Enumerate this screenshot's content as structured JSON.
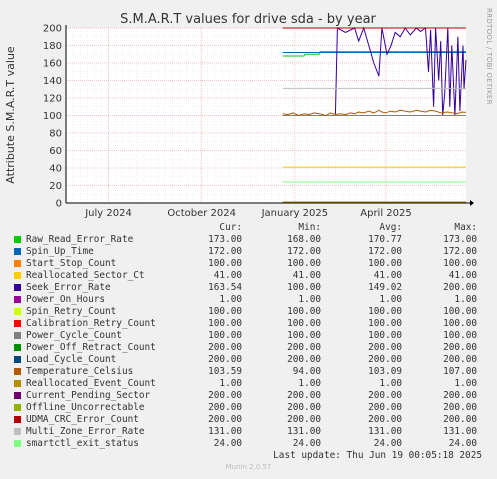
{
  "chart_data": {
    "type": "line",
    "title": "S.M.A.R.T values for drive sda - by year",
    "ylabel": "Attribute S.M.A.R.T value",
    "side_label": "RRDTOOL / TOBI OETIKER",
    "ylim": [
      0,
      200
    ],
    "y_ticks": [
      0,
      20,
      40,
      60,
      80,
      100,
      120,
      140,
      160,
      180,
      200
    ],
    "x_range": [
      "2024-05-20",
      "2025-06-19"
    ],
    "x_ticks": [
      {
        "date": "2024-07-01",
        "label": "July 2024"
      },
      {
        "date": "2024-10-01",
        "label": "October 2024"
      },
      {
        "date": "2025-01-01",
        "label": "January 2025"
      },
      {
        "date": "2025-04-01",
        "label": "April 2025"
      }
    ],
    "grid": true,
    "columns": {
      "cur": "Cur:",
      "min": "Min:",
      "avg": "Avg:",
      "max": "Max:"
    },
    "series": [
      {
        "name": "Raw_Read_Error_Rate",
        "color": "#00cc00",
        "cur": "173.00",
        "min": "168.00",
        "avg": "170.77",
        "max": "173.00",
        "points": [
          [
            "2024-12-20",
            168
          ],
          [
            "2025-01-10",
            168
          ],
          [
            "2025-01-11",
            170
          ],
          [
            "2025-01-25",
            170
          ],
          [
            "2025-01-26",
            173
          ],
          [
            "2025-06-19",
            173
          ]
        ]
      },
      {
        "name": "Spin_Up_Time",
        "color": "#0066b3",
        "cur": "172.00",
        "min": "172.00",
        "avg": "172.00",
        "max": "172.00",
        "points": [
          [
            "2024-12-20",
            172
          ],
          [
            "2025-06-19",
            172
          ]
        ]
      },
      {
        "name": "Start_Stop_Count",
        "color": "#ff8000",
        "cur": "100.00",
        "min": "100.00",
        "avg": "100.00",
        "max": "100.00",
        "points": [
          [
            "2024-12-20",
            100
          ],
          [
            "2025-06-19",
            100
          ]
        ]
      },
      {
        "name": "Reallocated_Sector_Ct",
        "color": "#ffcc00",
        "cur": "41.00",
        "min": "41.00",
        "avg": "41.00",
        "max": "41.00",
        "points": [
          [
            "2024-12-20",
            41
          ],
          [
            "2025-06-19",
            41
          ]
        ]
      },
      {
        "name": "Seek_Error_Rate",
        "color": "#330099",
        "cur": "163.54",
        "min": "100.00",
        "avg": "149.02",
        "max": "200.00",
        "points": [
          [
            "2024-12-20",
            100
          ],
          [
            "2025-02-10",
            100
          ],
          [
            "2025-02-12",
            200
          ],
          [
            "2025-02-20",
            195
          ],
          [
            "2025-03-01",
            200
          ],
          [
            "2025-03-05",
            185
          ],
          [
            "2025-03-10",
            200
          ],
          [
            "2025-03-15",
            180
          ],
          [
            "2025-03-20",
            160
          ],
          [
            "2025-03-25",
            145
          ],
          [
            "2025-03-28",
            200
          ],
          [
            "2025-04-02",
            170
          ],
          [
            "2025-04-06",
            180
          ],
          [
            "2025-04-10",
            195
          ],
          [
            "2025-04-15",
            190
          ],
          [
            "2025-04-20",
            200
          ],
          [
            "2025-04-25",
            192
          ],
          [
            "2025-05-01",
            200
          ],
          [
            "2025-05-05",
            196
          ],
          [
            "2025-05-10",
            200
          ],
          [
            "2025-05-13",
            150
          ],
          [
            "2025-05-15",
            198
          ],
          [
            "2025-05-18",
            110
          ],
          [
            "2025-05-20",
            200
          ],
          [
            "2025-05-23",
            140
          ],
          [
            "2025-05-25",
            185
          ],
          [
            "2025-05-27",
            100
          ],
          [
            "2025-05-29",
            125
          ],
          [
            "2025-06-01",
            200
          ],
          [
            "2025-06-03",
            110
          ],
          [
            "2025-06-05",
            180
          ],
          [
            "2025-06-08",
            100
          ],
          [
            "2025-06-11",
            190
          ],
          [
            "2025-06-13",
            105
          ],
          [
            "2025-06-16",
            180
          ],
          [
            "2025-06-17",
            130
          ],
          [
            "2025-06-19",
            163.54
          ]
        ]
      },
      {
        "name": "Power_On_Hours",
        "color": "#990099",
        "cur": "1.00",
        "min": "1.00",
        "avg": "1.00",
        "max": "1.00",
        "points": [
          [
            "2024-12-20",
            1
          ],
          [
            "2025-06-19",
            1
          ]
        ]
      },
      {
        "name": "Spin_Retry_Count",
        "color": "#ccff00",
        "cur": "100.00",
        "min": "100.00",
        "avg": "100.00",
        "max": "100.00",
        "points": [
          [
            "2024-12-20",
            100
          ],
          [
            "2025-06-19",
            100
          ]
        ]
      },
      {
        "name": "Calibration_Retry_Count",
        "color": "#ff0000",
        "cur": "100.00",
        "min": "100.00",
        "avg": "100.00",
        "max": "100.00",
        "points": [
          [
            "2024-12-20",
            100
          ],
          [
            "2025-06-19",
            100
          ]
        ]
      },
      {
        "name": "Power_Cycle_Count",
        "color": "#808080",
        "cur": "100.00",
        "min": "100.00",
        "avg": "100.00",
        "max": "100.00",
        "points": [
          [
            "2024-12-20",
            100
          ],
          [
            "2025-06-19",
            100
          ]
        ]
      },
      {
        "name": "Power_Off_Retract_Count",
        "color": "#008f00",
        "cur": "200.00",
        "min": "200.00",
        "avg": "200.00",
        "max": "200.00",
        "points": [
          [
            "2024-12-20",
            200
          ],
          [
            "2025-06-19",
            200
          ]
        ]
      },
      {
        "name": "Load_Cycle_Count",
        "color": "#00487d",
        "cur": "200.00",
        "min": "200.00",
        "avg": "200.00",
        "max": "200.00",
        "points": [
          [
            "2024-12-20",
            200
          ],
          [
            "2025-06-19",
            200
          ]
        ]
      },
      {
        "name": "Temperature_Celsius",
        "color": "#b35a00",
        "cur": "103.59",
        "min": "94.00",
        "avg": "103.09",
        "max": "107.00",
        "points": [
          [
            "2024-12-20",
            102
          ],
          [
            "2024-12-25",
            101
          ],
          [
            "2024-12-30",
            103
          ],
          [
            "2025-01-05",
            100
          ],
          [
            "2025-01-10",
            102
          ],
          [
            "2025-01-15",
            101
          ],
          [
            "2025-01-20",
            103
          ],
          [
            "2025-01-25",
            102
          ],
          [
            "2025-02-01",
            100
          ],
          [
            "2025-02-05",
            103
          ],
          [
            "2025-02-10",
            101
          ],
          [
            "2025-02-15",
            102
          ],
          [
            "2025-02-20",
            101
          ],
          [
            "2025-02-25",
            103
          ],
          [
            "2025-03-01",
            102
          ],
          [
            "2025-03-05",
            104
          ],
          [
            "2025-03-10",
            103
          ],
          [
            "2025-03-15",
            105
          ],
          [
            "2025-03-20",
            103
          ],
          [
            "2025-03-25",
            106
          ],
          [
            "2025-03-28",
            104
          ],
          [
            "2025-04-01",
            103
          ],
          [
            "2025-04-05",
            105
          ],
          [
            "2025-04-10",
            104
          ],
          [
            "2025-04-15",
            106
          ],
          [
            "2025-04-20",
            105
          ],
          [
            "2025-04-25",
            104
          ],
          [
            "2025-05-01",
            106
          ],
          [
            "2025-05-05",
            105
          ],
          [
            "2025-05-10",
            104
          ],
          [
            "2025-05-15",
            106
          ],
          [
            "2025-05-20",
            105
          ],
          [
            "2025-05-25",
            103
          ],
          [
            "2025-06-01",
            104
          ],
          [
            "2025-06-05",
            103
          ],
          [
            "2025-06-10",
            102
          ],
          [
            "2025-06-15",
            104
          ],
          [
            "2025-06-19",
            103.59
          ]
        ]
      },
      {
        "name": "Reallocated_Event_Count",
        "color": "#b38f00",
        "cur": "1.00",
        "min": "1.00",
        "avg": "1.00",
        "max": "1.00",
        "points": [
          [
            "2024-12-20",
            1
          ],
          [
            "2025-06-19",
            1
          ]
        ]
      },
      {
        "name": "Current_Pending_Sector",
        "color": "#6b006b",
        "cur": "200.00",
        "min": "200.00",
        "avg": "200.00",
        "max": "200.00",
        "points": [
          [
            "2024-12-20",
            200
          ],
          [
            "2025-06-19",
            200
          ]
        ]
      },
      {
        "name": "Offline_Uncorrectable",
        "color": "#8fb300",
        "cur": "200.00",
        "min": "200.00",
        "avg": "200.00",
        "max": "200.00",
        "points": [
          [
            "2024-12-20",
            200
          ],
          [
            "2025-06-19",
            200
          ]
        ]
      },
      {
        "name": "UDMA_CRC_Error_Count",
        "color": "#b30000",
        "cur": "200.00",
        "min": "200.00",
        "avg": "200.00",
        "max": "200.00",
        "points": [
          [
            "2024-12-20",
            200
          ],
          [
            "2025-06-19",
            200
          ]
        ]
      },
      {
        "name": "Multi_Zone_Error_Rate",
        "color": "#bebebe",
        "cur": "131.00",
        "min": "131.00",
        "avg": "131.00",
        "max": "131.00",
        "points": [
          [
            "2024-12-20",
            131
          ],
          [
            "2025-06-19",
            131
          ]
        ]
      },
      {
        "name": "smartctl_exit_status",
        "color": "#80ff80",
        "cur": "24.00",
        "min": "24.00",
        "avg": "24.00",
        "max": "24.00",
        "points": [
          [
            "2024-12-20",
            24
          ],
          [
            "2025-06-19",
            24
          ]
        ]
      }
    ]
  },
  "footer": {
    "last_update": "Last update: Thu Jun 19 00:05:18 2025",
    "munin": "Munin 2.0.57"
  }
}
